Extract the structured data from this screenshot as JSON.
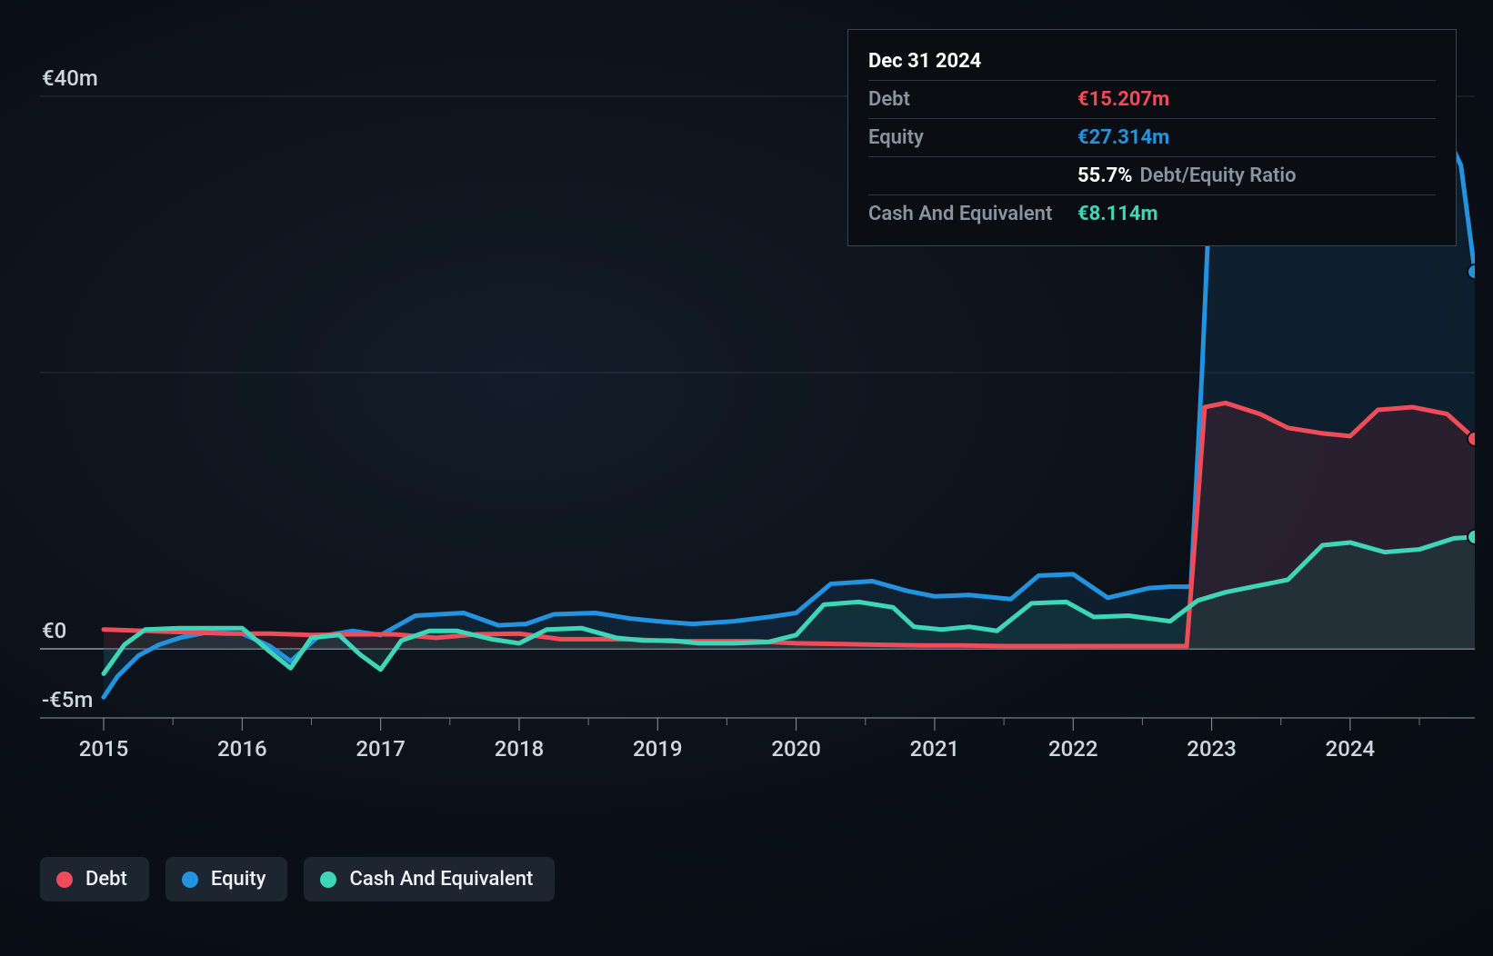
{
  "chart": {
    "type": "area",
    "background": "radial-gradient #131c28 -> #070b12",
    "x": {
      "domain": [
        2015,
        2024.9
      ],
      "ticks": [
        2015,
        2016,
        2017,
        2018,
        2019,
        2020,
        2021,
        2022,
        2023,
        2024
      ],
      "tick_labels": [
        "2015",
        "2016",
        "2017",
        "2018",
        "2019",
        "2020",
        "2021",
        "2022",
        "2023",
        "2024"
      ]
    },
    "y": {
      "domain": [
        -5,
        45
      ],
      "zero": 0,
      "gridlines": [
        -5,
        0,
        20,
        40
      ],
      "labeled_gridlines": [
        {
          "v": 40,
          "label": "€40m"
        },
        {
          "v": 0,
          "label": "€0"
        },
        {
          "v": -5,
          "label": "-€5m"
        }
      ],
      "grid_color": "#5a6470",
      "axis_color": "#8e98a4",
      "label_color": "#cfd6de",
      "label_fontsize": 24
    },
    "line_width": 5,
    "fill_opacity": 0.28,
    "series": [
      {
        "id": "equity",
        "name": "Equity",
        "color": "#2393df",
        "fill": "#16476b",
        "points": [
          [
            2015.0,
            -3.5
          ],
          [
            2015.1,
            -2.0
          ],
          [
            2015.25,
            -0.5
          ],
          [
            2015.4,
            0.3
          ],
          [
            2015.55,
            0.8
          ],
          [
            2015.75,
            1.2
          ],
          [
            2016.0,
            1.1
          ],
          [
            2016.2,
            0.2
          ],
          [
            2016.35,
            -0.9
          ],
          [
            2016.55,
            0.9
          ],
          [
            2016.8,
            1.3
          ],
          [
            2017.0,
            1.0
          ],
          [
            2017.25,
            2.4
          ],
          [
            2017.6,
            2.6
          ],
          [
            2017.85,
            1.7
          ],
          [
            2018.05,
            1.8
          ],
          [
            2018.25,
            2.5
          ],
          [
            2018.55,
            2.6
          ],
          [
            2018.8,
            2.2
          ],
          [
            2019.0,
            2.0
          ],
          [
            2019.25,
            1.8
          ],
          [
            2019.55,
            2.0
          ],
          [
            2019.8,
            2.3
          ],
          [
            2020.0,
            2.6
          ],
          [
            2020.25,
            4.7
          ],
          [
            2020.55,
            4.9
          ],
          [
            2020.8,
            4.2
          ],
          [
            2021.0,
            3.8
          ],
          [
            2021.25,
            3.9
          ],
          [
            2021.55,
            3.6
          ],
          [
            2021.75,
            5.3
          ],
          [
            2022.0,
            5.4
          ],
          [
            2022.25,
            3.7
          ],
          [
            2022.55,
            4.4
          ],
          [
            2022.7,
            4.5
          ],
          [
            2022.85,
            4.5
          ],
          [
            2022.93,
            20.0
          ],
          [
            2023.0,
            36.0
          ],
          [
            2023.25,
            36.3
          ],
          [
            2023.55,
            36.3
          ],
          [
            2023.8,
            40.0
          ],
          [
            2024.0,
            40.3
          ],
          [
            2024.25,
            40.3
          ],
          [
            2024.55,
            40.3
          ],
          [
            2024.8,
            35.0
          ],
          [
            2024.9,
            27.3
          ]
        ]
      },
      {
        "id": "debt",
        "name": "Debt",
        "color": "#ef4b58",
        "fill": "#6e2832",
        "points": [
          [
            2015.0,
            1.4
          ],
          [
            2015.3,
            1.3
          ],
          [
            2015.6,
            1.2
          ],
          [
            2015.9,
            1.1
          ],
          [
            2016.2,
            1.1
          ],
          [
            2016.5,
            1.0
          ],
          [
            2016.8,
            1.05
          ],
          [
            2017.1,
            1.05
          ],
          [
            2017.4,
            0.8
          ],
          [
            2017.7,
            1.05
          ],
          [
            2018.0,
            1.1
          ],
          [
            2018.3,
            0.7
          ],
          [
            2018.55,
            0.7
          ],
          [
            2018.8,
            0.7
          ],
          [
            2019.1,
            0.55
          ],
          [
            2019.4,
            0.55
          ],
          [
            2019.7,
            0.55
          ],
          [
            2020.0,
            0.4
          ],
          [
            2020.3,
            0.35
          ],
          [
            2020.6,
            0.3
          ],
          [
            2020.9,
            0.25
          ],
          [
            2021.2,
            0.25
          ],
          [
            2021.5,
            0.2
          ],
          [
            2021.8,
            0.2
          ],
          [
            2022.1,
            0.2
          ],
          [
            2022.4,
            0.2
          ],
          [
            2022.7,
            0.2
          ],
          [
            2022.82,
            0.2
          ],
          [
            2022.88,
            8.0
          ],
          [
            2022.95,
            17.5
          ],
          [
            2023.1,
            17.8
          ],
          [
            2023.35,
            17.0
          ],
          [
            2023.55,
            16.0
          ],
          [
            2023.8,
            15.6
          ],
          [
            2024.0,
            15.4
          ],
          [
            2024.2,
            17.3
          ],
          [
            2024.45,
            17.5
          ],
          [
            2024.7,
            17.0
          ],
          [
            2024.9,
            15.2
          ]
        ]
      },
      {
        "id": "cash",
        "name": "Cash And Equivalent",
        "color": "#3fd6b8",
        "fill": "#1d5a52",
        "points": [
          [
            2015.0,
            -1.8
          ],
          [
            2015.15,
            0.3
          ],
          [
            2015.3,
            1.4
          ],
          [
            2015.55,
            1.5
          ],
          [
            2015.8,
            1.5
          ],
          [
            2016.0,
            1.5
          ],
          [
            2016.2,
            -0.2
          ],
          [
            2016.35,
            -1.4
          ],
          [
            2016.5,
            0.8
          ],
          [
            2016.7,
            1.0
          ],
          [
            2016.85,
            -0.4
          ],
          [
            2017.0,
            -1.5
          ],
          [
            2017.15,
            0.6
          ],
          [
            2017.35,
            1.3
          ],
          [
            2017.55,
            1.3
          ],
          [
            2017.8,
            0.7
          ],
          [
            2018.0,
            0.4
          ],
          [
            2018.2,
            1.4
          ],
          [
            2018.45,
            1.5
          ],
          [
            2018.7,
            0.8
          ],
          [
            2018.9,
            0.6
          ],
          [
            2019.1,
            0.6
          ],
          [
            2019.3,
            0.4
          ],
          [
            2019.55,
            0.4
          ],
          [
            2019.8,
            0.5
          ],
          [
            2020.0,
            1.0
          ],
          [
            2020.2,
            3.2
          ],
          [
            2020.45,
            3.4
          ],
          [
            2020.7,
            3.0
          ],
          [
            2020.85,
            1.6
          ],
          [
            2021.05,
            1.4
          ],
          [
            2021.25,
            1.6
          ],
          [
            2021.45,
            1.3
          ],
          [
            2021.7,
            3.3
          ],
          [
            2021.95,
            3.4
          ],
          [
            2022.15,
            2.3
          ],
          [
            2022.4,
            2.4
          ],
          [
            2022.7,
            2.0
          ],
          [
            2022.9,
            3.5
          ],
          [
            2023.1,
            4.1
          ],
          [
            2023.3,
            4.5
          ],
          [
            2023.55,
            5.0
          ],
          [
            2023.8,
            7.5
          ],
          [
            2024.0,
            7.7
          ],
          [
            2024.25,
            7.0
          ],
          [
            2024.5,
            7.2
          ],
          [
            2024.75,
            8.0
          ],
          [
            2024.9,
            8.1
          ]
        ]
      }
    ],
    "end_markers": [
      {
        "series": "equity",
        "x": 2024.9,
        "y": 27.3
      },
      {
        "series": "debt",
        "x": 2024.9,
        "y": 15.2
      },
      {
        "series": "cash",
        "x": 2024.9,
        "y": 8.1
      }
    ]
  },
  "tooltip": {
    "date": "Dec 31 2024",
    "rows": [
      {
        "id": "debt",
        "label": "Debt",
        "value": "€15.207m",
        "color": "#ef4b58"
      },
      {
        "id": "equity",
        "label": "Equity",
        "value": "€27.314m",
        "color": "#2393df"
      }
    ],
    "ratio": {
      "pct": "55.7%",
      "label": "Debt/Equity Ratio"
    },
    "cash_row": {
      "label": "Cash And Equivalent",
      "value": "€8.114m",
      "color": "#3fd6b8"
    }
  },
  "legend": {
    "items": [
      {
        "id": "debt",
        "label": "Debt",
        "color": "#ef4b58"
      },
      {
        "id": "equity",
        "label": "Equity",
        "color": "#2393df"
      },
      {
        "id": "cash",
        "label": "Cash And Equivalent",
        "color": "#3fd6b8"
      }
    ],
    "bg": "#1d2530"
  }
}
